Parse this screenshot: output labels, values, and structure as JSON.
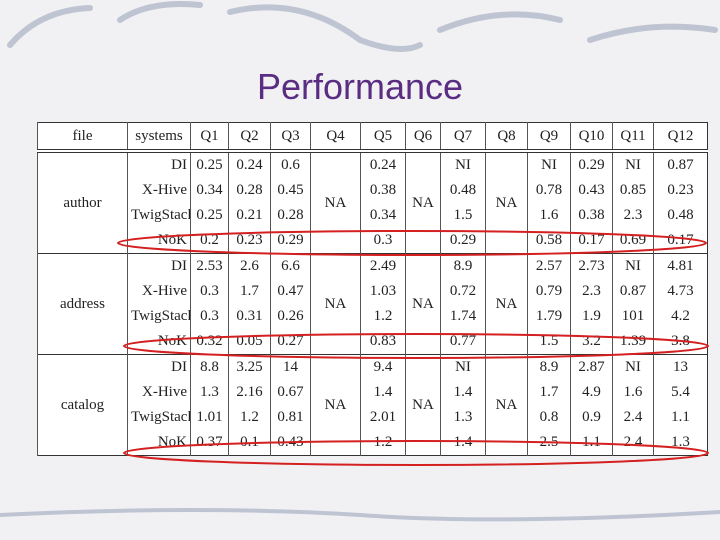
{
  "title": "Performance",
  "table": {
    "header": [
      "file",
      "systems",
      "Q1",
      "Q2",
      "Q3",
      "Q4",
      "Q5",
      "Q6",
      "Q7",
      "Q8",
      "Q9",
      "Q10",
      "Q11",
      "Q12"
    ],
    "groups": [
      {
        "file": "author",
        "na": [
          "NA",
          "NA",
          "NA"
        ],
        "rows": [
          [
            "DI",
            "0.25",
            "0.24",
            "0.6",
            "0.24",
            "NI",
            "NI",
            "0.29",
            "NI",
            "0.87"
          ],
          [
            "X-Hive",
            "0.34",
            "0.28",
            "0.45",
            "0.38",
            "0.48",
            "0.78",
            "0.43",
            "0.85",
            "0.23"
          ],
          [
            "TwigStack",
            "0.25",
            "0.21",
            "0.28",
            "0.34",
            "1.5",
            "1.6",
            "0.38",
            "2.3",
            "0.48"
          ],
          [
            "NoK",
            "0.2",
            "0.23",
            "0.29",
            "0.3",
            "0.29",
            "0.58",
            "0.17",
            "0.69",
            "0.17"
          ]
        ]
      },
      {
        "file": "address",
        "na": [
          "NA",
          "NA",
          "NA"
        ],
        "rows": [
          [
            "DI",
            "2.53",
            "2.6",
            "6.6",
            "2.49",
            "8.9",
            "2.57",
            "2.73",
            "NI",
            "4.81"
          ],
          [
            "X-Hive",
            "0.3",
            "1.7",
            "0.47",
            "1.03",
            "0.72",
            "0.79",
            "2.3",
            "0.87",
            "4.73"
          ],
          [
            "TwigStack",
            "0.3",
            "0.31",
            "0.26",
            "1.2",
            "1.74",
            "1.79",
            "1.9",
            "101",
            "4.2"
          ],
          [
            "NoK",
            "0.32",
            "0.05",
            "0.27",
            "0.83",
            "0.77",
            "1.5",
            "3.2",
            "1.39",
            "3.8"
          ]
        ]
      },
      {
        "file": "catalog",
        "na": [
          "NA",
          "NA",
          "NA"
        ],
        "rows": [
          [
            "DI",
            "8.8",
            "3.25",
            "14",
            "9.4",
            "NI",
            "8.9",
            "2.87",
            "NI",
            "13"
          ],
          [
            "X-Hive",
            "1.3",
            "2.16",
            "0.67",
            "1.4",
            "1.4",
            "1.7",
            "4.9",
            "1.6",
            "5.4"
          ],
          [
            "TwigStack",
            "1.01",
            "1.2",
            "0.81",
            "2.01",
            "1.3",
            "0.8",
            "0.9",
            "2.4",
            "1.1"
          ],
          [
            "NoK",
            "0.37",
            "0.1",
            "0.43",
            "1.2",
            "1.4",
            "2.5",
            "1.1",
            "2.4",
            "1.3"
          ]
        ]
      }
    ]
  }
}
